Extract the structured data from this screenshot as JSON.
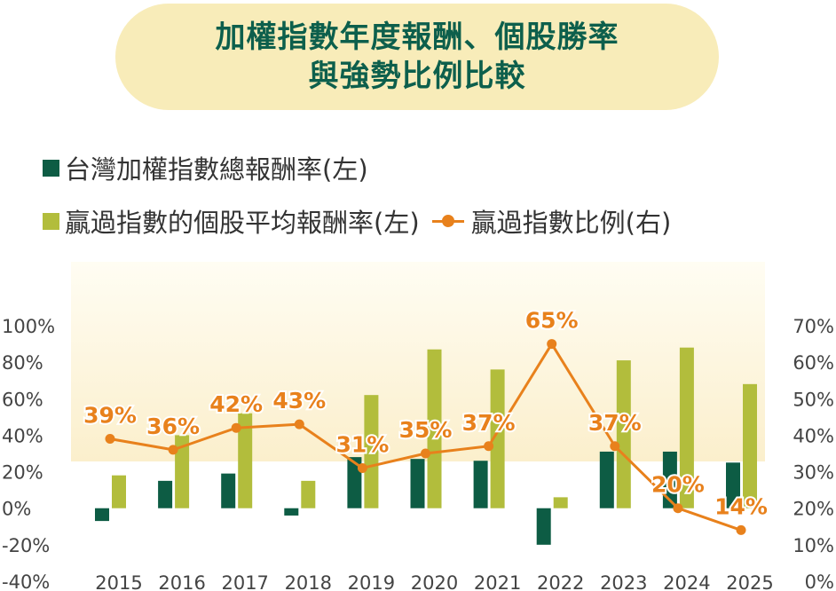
{
  "title": {
    "line1": "加權指數年度報酬、個股勝率",
    "line2": "與強勢比例比較"
  },
  "legend": {
    "index_return": "台灣加權指數總報酬率(左)",
    "winners_return": "贏過指數的個股平均報酬率(左)",
    "win_ratio": "贏過指數比例(右)"
  },
  "colors": {
    "index_bar": "#0d5c44",
    "winner_bar": "#b2bd3c",
    "ratio_line": "#e8811c",
    "title_bg": "#f8ecb9",
    "title_text": "#0d5f4c"
  },
  "chart_data": {
    "type": "bar",
    "categories": [
      "2015",
      "2016",
      "2017",
      "2018",
      "2019",
      "2020",
      "2021",
      "2022",
      "2023",
      "2024",
      "2025"
    ],
    "series": [
      {
        "name": "台灣加權指數總報酬率(左)",
        "type": "bar",
        "axis": "left",
        "values": [
          -7,
          15,
          19,
          -4,
          28,
          27,
          26,
          -20,
          31,
          31,
          25
        ]
      },
      {
        "name": "贏過指數的個股平均報酬率(左)",
        "type": "bar",
        "axis": "left",
        "values": [
          18,
          40,
          52,
          15,
          62,
          87,
          76,
          6,
          81,
          88,
          68
        ]
      },
      {
        "name": "贏過指數比例(右)",
        "type": "line",
        "axis": "right",
        "values": [
          39,
          36,
          42,
          43,
          31,
          35,
          37,
          65,
          37,
          20,
          14
        ],
        "labels": [
          "39%",
          "36%",
          "42%",
          "43%",
          "31%",
          "35%",
          "37%",
          "65%",
          "37%",
          "20%",
          "14%"
        ]
      }
    ],
    "left_axis": {
      "ylim": [
        -40,
        100
      ],
      "ticks": [
        "-40%",
        "-20%",
        "0%",
        "20%",
        "40%",
        "60%",
        "80%",
        "100%"
      ]
    },
    "right_axis": {
      "ylim": [
        0,
        70
      ],
      "ticks": [
        "0%",
        "10%",
        "20%",
        "30%",
        "40%",
        "50%",
        "60%",
        "70%"
      ]
    },
    "legend_position": "top-left",
    "grid": false
  }
}
